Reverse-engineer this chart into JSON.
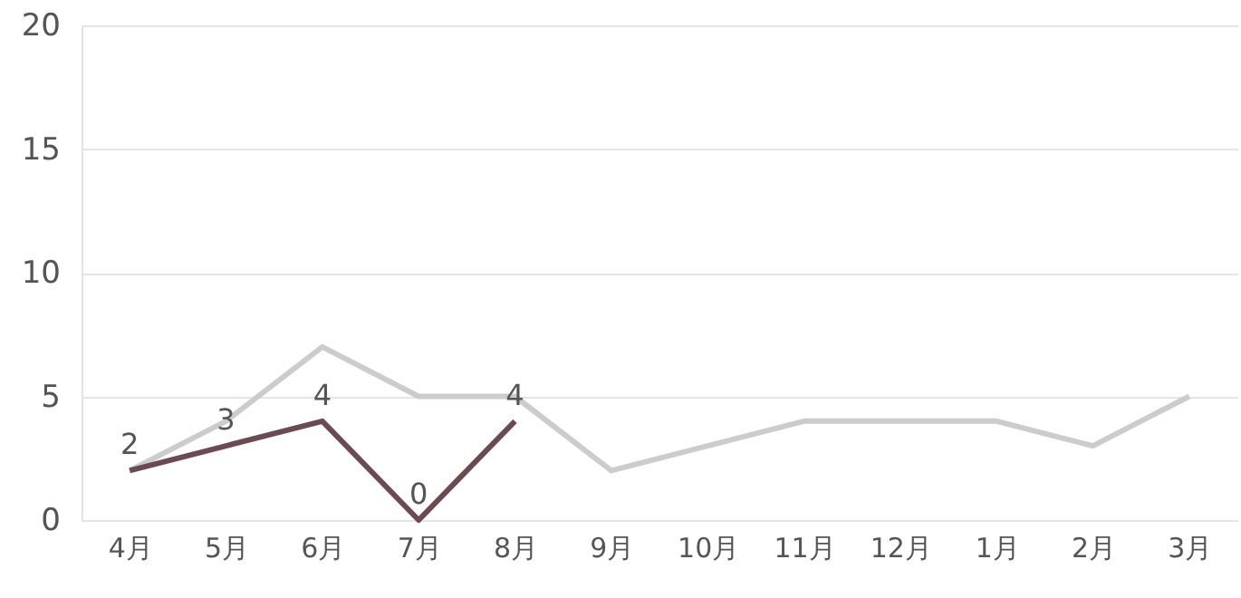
{
  "chart_data": {
    "type": "line",
    "categories": [
      "4月",
      "5月",
      "6月",
      "7月",
      "8月",
      "9月",
      "10月",
      "11月",
      "12月",
      "1月",
      "2月",
      "3月"
    ],
    "series": [
      {
        "color": "#cccccc",
        "values": [
          2,
          4,
          7,
          5,
          5,
          2,
          3,
          4,
          4,
          4,
          3,
          5
        ]
      },
      {
        "color": "#6b4a52",
        "values": [
          2,
          3,
          4,
          0,
          4,
          null,
          null,
          null,
          null,
          null,
          null,
          null
        ],
        "value_labels": [
          "2",
          "3",
          "4",
          "0",
          "4",
          null,
          null,
          null,
          null,
          null,
          null,
          null
        ]
      }
    ],
    "ylim": [
      0,
      20
    ],
    "yticks": [
      0,
      5,
      10,
      15,
      20
    ],
    "grid": "y",
    "marker": "none",
    "line_style": "solid"
  }
}
